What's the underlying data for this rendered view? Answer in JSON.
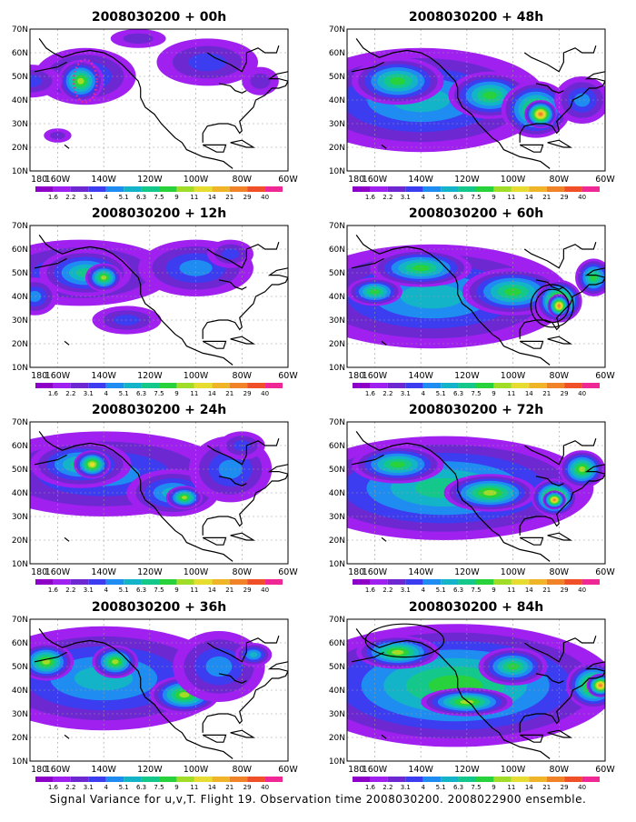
{
  "panels": [
    {
      "title": "2008030200 + 00h",
      "lead": "00h",
      "blobs": [
        {
          "lon": -148,
          "lat": 50,
          "rx": 22,
          "ry": 12,
          "v": 3
        },
        {
          "lon": -150,
          "lat": 48,
          "rx": 10,
          "ry": 9,
          "v": 7
        },
        {
          "lon": -172,
          "lat": 48,
          "rx": 14,
          "ry": 7,
          "v": 2
        },
        {
          "lon": -95,
          "lat": 56,
          "rx": 22,
          "ry": 10,
          "v": 2
        },
        {
          "lon": -72,
          "lat": 48,
          "rx": 8,
          "ry": 6,
          "v": 1
        },
        {
          "lon": -125,
          "lat": 66,
          "rx": 12,
          "ry": 4,
          "v": 1
        },
        {
          "lon": -160,
          "lat": 25,
          "rx": 6,
          "ry": 3,
          "v": 1
        }
      ]
    },
    {
      "title": "2008030200 + 12h",
      "lead": "12h",
      "blobs": [
        {
          "lon": -150,
          "lat": 50,
          "rx": 40,
          "ry": 14,
          "v": 3
        },
        {
          "lon": -148,
          "lat": 50,
          "rx": 20,
          "ry": 10,
          "v": 5
        },
        {
          "lon": -140,
          "lat": 48,
          "rx": 8,
          "ry": 6,
          "v": 7
        },
        {
          "lon": -100,
          "lat": 52,
          "rx": 25,
          "ry": 12,
          "v": 3
        },
        {
          "lon": -85,
          "lat": 58,
          "rx": 10,
          "ry": 6,
          "v": 2
        },
        {
          "lon": -130,
          "lat": 30,
          "rx": 15,
          "ry": 6,
          "v": 2
        },
        {
          "lon": -170,
          "lat": 40,
          "rx": 10,
          "ry": 8,
          "v": 3
        }
      ]
    },
    {
      "title": "2008030200 + 24h",
      "lead": "24h",
      "blobs": [
        {
          "lon": -140,
          "lat": 48,
          "rx": 55,
          "ry": 18,
          "v": 3
        },
        {
          "lon": -150,
          "lat": 52,
          "rx": 22,
          "ry": 10,
          "v": 5
        },
        {
          "lon": -145,
          "lat": 52,
          "rx": 8,
          "ry": 6,
          "v": 8
        },
        {
          "lon": -110,
          "lat": 40,
          "rx": 20,
          "ry": 10,
          "v": 4
        },
        {
          "lon": -105,
          "lat": 38,
          "rx": 8,
          "ry": 5,
          "v": 7
        },
        {
          "lon": -85,
          "lat": 50,
          "rx": 18,
          "ry": 14,
          "v": 3
        },
        {
          "lon": -80,
          "lat": 60,
          "rx": 10,
          "ry": 6,
          "v": 2
        }
      ]
    },
    {
      "title": "2008030200 + 36h",
      "lead": "36h",
      "blobs": [
        {
          "lon": -140,
          "lat": 45,
          "rx": 55,
          "ry": 22,
          "v": 4
        },
        {
          "lon": -165,
          "lat": 52,
          "rx": 12,
          "ry": 8,
          "v": 7
        },
        {
          "lon": -135,
          "lat": 52,
          "rx": 10,
          "ry": 7,
          "v": 7
        },
        {
          "lon": -105,
          "lat": 38,
          "rx": 15,
          "ry": 8,
          "v": 7
        },
        {
          "lon": -90,
          "lat": 50,
          "rx": 20,
          "ry": 15,
          "v": 3
        },
        {
          "lon": -75,
          "lat": 55,
          "rx": 8,
          "ry": 5,
          "v": 4
        }
      ]
    },
    {
      "title": "2008030200 + 48h",
      "lead": "48h",
      "blobs": [
        {
          "lon": -140,
          "lat": 40,
          "rx": 55,
          "ry": 22,
          "v": 4
        },
        {
          "lon": -150,
          "lat": 48,
          "rx": 20,
          "ry": 10,
          "v": 6
        },
        {
          "lon": -110,
          "lat": 42,
          "rx": 18,
          "ry": 10,
          "v": 6
        },
        {
          "lon": -90,
          "lat": 36,
          "rx": 15,
          "ry": 12,
          "v": 7
        },
        {
          "lon": -88,
          "lat": 34,
          "rx": 7,
          "ry": 6,
          "v": 10
        },
        {
          "lon": -70,
          "lat": 40,
          "rx": 12,
          "ry": 10,
          "v": 3
        }
      ]
    },
    {
      "title": "2008030200 + 60h",
      "lead": "60h",
      "blobs": [
        {
          "lon": -135,
          "lat": 40,
          "rx": 60,
          "ry": 22,
          "v": 4
        },
        {
          "lon": -140,
          "lat": 52,
          "rx": 22,
          "ry": 8,
          "v": 6
        },
        {
          "lon": -160,
          "lat": 42,
          "rx": 12,
          "ry": 6,
          "v": 6
        },
        {
          "lon": -100,
          "lat": 42,
          "rx": 22,
          "ry": 10,
          "v": 6
        },
        {
          "lon": -80,
          "lat": 38,
          "rx": 10,
          "ry": 9,
          "v": 9
        },
        {
          "lon": -80,
          "lat": 36,
          "rx": 5,
          "ry": 5,
          "v": 10
        },
        {
          "lon": -65,
          "lat": 48,
          "rx": 8,
          "ry": 8,
          "v": 6
        }
      ]
    },
    {
      "title": "2008030200 + 72h",
      "lead": "72h",
      "blobs": [
        {
          "lon": -130,
          "lat": 42,
          "rx": 65,
          "ry": 22,
          "v": 5
        },
        {
          "lon": -150,
          "lat": 52,
          "rx": 20,
          "ry": 8,
          "v": 6
        },
        {
          "lon": -110,
          "lat": 40,
          "rx": 20,
          "ry": 8,
          "v": 7
        },
        {
          "lon": -82,
          "lat": 38,
          "rx": 10,
          "ry": 8,
          "v": 9
        },
        {
          "lon": -82,
          "lat": 37,
          "rx": 5,
          "ry": 4,
          "v": 10
        },
        {
          "lon": -70,
          "lat": 50,
          "rx": 10,
          "ry": 8,
          "v": 7
        }
      ]
    },
    {
      "title": "2008030200 + 84h",
      "lead": "84h",
      "blobs": [
        {
          "lon": -125,
          "lat": 42,
          "rx": 70,
          "ry": 26,
          "v": 6
        },
        {
          "lon": -150,
          "lat": 56,
          "rx": 18,
          "ry": 7,
          "v": 7
        },
        {
          "lon": -120,
          "lat": 35,
          "rx": 20,
          "ry": 6,
          "v": 7
        },
        {
          "lon": -65,
          "lat": 42,
          "rx": 12,
          "ry": 10,
          "v": 8
        },
        {
          "lon": -62,
          "lat": 42,
          "rx": 6,
          "ry": 5,
          "v": 10
        },
        {
          "lon": -100,
          "lat": 50,
          "rx": 15,
          "ry": 8,
          "v": 6
        }
      ]
    }
  ],
  "lon_labels": [
    "180",
    "160W",
    "140W",
    "120W",
    "100W",
    "80W",
    "60W"
  ],
  "lat_labels": [
    "10N",
    "20N",
    "30N",
    "40N",
    "50N",
    "60N",
    "70N"
  ],
  "colorbar_labels": [
    "1.6",
    "2.2",
    "3.1",
    "4",
    "5.1",
    "6.3",
    "7.5",
    "9",
    "11",
    "14",
    "21",
    "29",
    "40"
  ],
  "colorbar_colors": [
    "#a020f0",
    "#6e28d2",
    "#3c3cf0",
    "#1e8cf0",
    "#14b4c8",
    "#14c88c",
    "#28d23c",
    "#a0dc28",
    "#e6dc32",
    "#f0b428",
    "#f08228",
    "#f05028",
    "#f02896"
  ],
  "caption": "Signal Variance for u,v,T. Flight 19. Observation time 2008030200. 2008022900 ensemble.",
  "overlays": {
    "panel_00h_flight_track": {
      "lon": -148,
      "lat": 48,
      "rx": 5,
      "ry": 9,
      "color": "#f02896"
    },
    "panel_60h_circles": [
      {
        "lon": -83,
        "lat": 36,
        "r1": 7,
        "r2": 9
      }
    ],
    "panel_84h_ellipse": {
      "lon": -147,
      "lat": 61,
      "rx": 17,
      "ry": 7
    }
  }
}
